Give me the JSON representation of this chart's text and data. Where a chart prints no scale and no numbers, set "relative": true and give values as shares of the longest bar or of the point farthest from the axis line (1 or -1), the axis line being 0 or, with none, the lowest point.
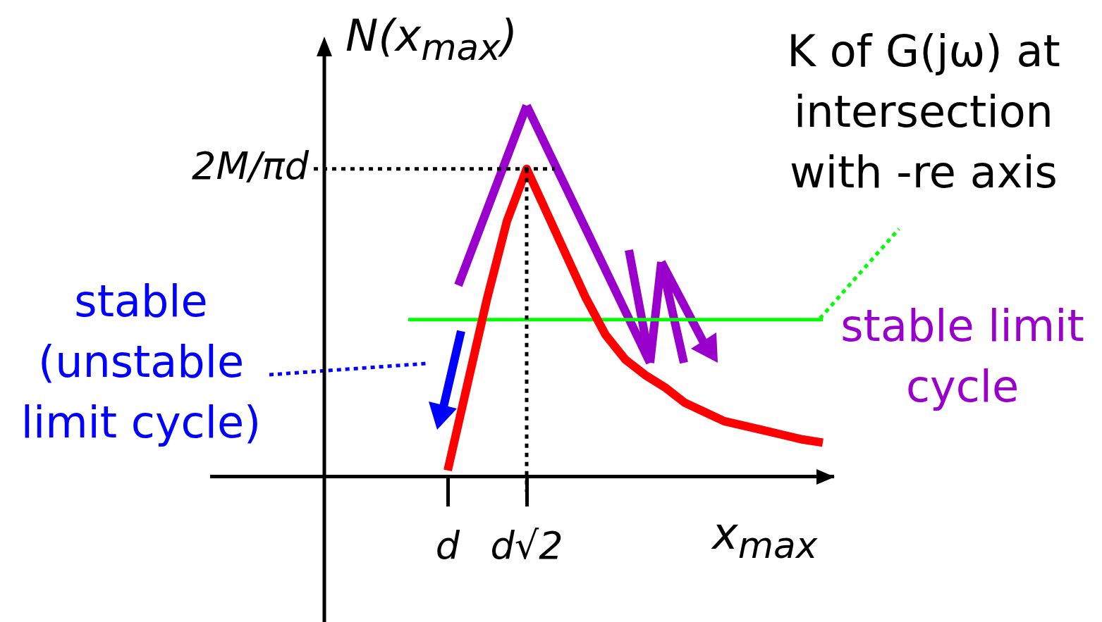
{
  "chart_data": {
    "type": "line",
    "relative": true,
    "xlabel": "x$_{max}$",
    "ylabel": "N(x$_{max}$)",
    "categories": [
      null,
      null,
      "d",
      null,
      null,
      null,
      "d√2",
      null,
      null,
      null,
      null,
      null,
      null,
      null,
      null,
      null,
      null,
      null,
      null,
      null,
      null,
      null
    ],
    "marker": "none",
    "line_style": "solid",
    "series": [
      {
        "color": "#ff0000",
        "values": [
          null,
          null,
          0.02,
          0.3,
          0.58,
          0.83,
          1.0,
          0.86,
          0.72,
          0.58,
          0.46,
          0.38,
          0.33,
          0.29,
          0.24,
          0.21,
          0.18,
          0.165,
          0.15,
          0.135,
          0.12,
          0.11
        ]
      },
      {
        "color": "#00ff00",
        "values": [
          0.51,
          0.51,
          0.51,
          0.51,
          0.51,
          0.51,
          0.51,
          0.51,
          0.51,
          0.51,
          0.51,
          0.51,
          0.51,
          0.51,
          0.51,
          0.51,
          0.51,
          0.51,
          0.51,
          0.51,
          0.51,
          0.51
        ]
      }
    ],
    "ref_lines": [
      {
        "axis": "y",
        "value": 1,
        "label": "2M/πd",
        "line_style": "dotted"
      },
      {
        "axis": "x",
        "value": "d√2",
        "line_style": "dotted"
      }
    ],
    "annotations": [
      "K of G(jω) at intersection with -re axis",
      "stable (unstable limit cycle)",
      "stable limit cycle"
    ]
  }
}
